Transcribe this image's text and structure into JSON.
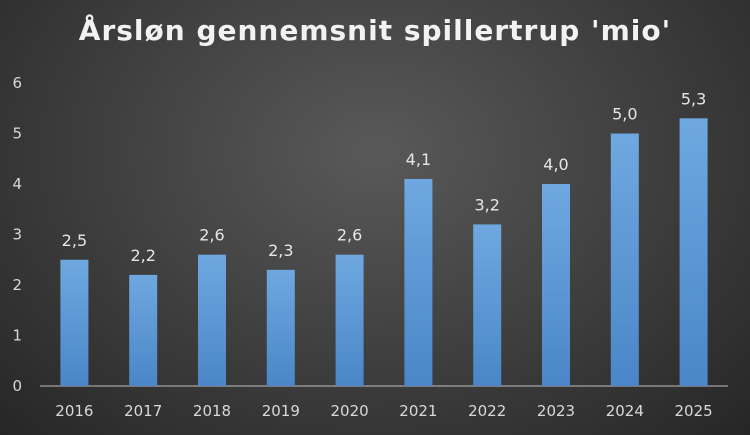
{
  "chart_data": {
    "type": "bar",
    "title": "Årsløn gennemsnit spillertrup 'mio'",
    "xlabel": "",
    "ylabel": "",
    "categories": [
      "2016",
      "2017",
      "2018",
      "2019",
      "2020",
      "2021",
      "2022",
      "2023",
      "2024",
      "2025"
    ],
    "values": [
      2.5,
      2.2,
      2.6,
      2.3,
      2.6,
      4.1,
      3.2,
      4.0,
      5.0,
      5.3
    ],
    "data_labels": [
      "2,5",
      "2,2",
      "2,6",
      "2,3",
      "2,6",
      "4,1",
      "3,2",
      "4,0",
      "5,0",
      "5,3"
    ],
    "ylim": [
      0,
      6
    ],
    "yticks": [
      "0",
      "1",
      "2",
      "3",
      "4",
      "5",
      "6"
    ],
    "grid": false,
    "legend": "none",
    "colors": {
      "bar_top": "#6fa8e0",
      "bar_bottom": "#4a86c8",
      "axis": "#bfbfbf",
      "text": "#d9d9d9",
      "title": "#f2f2f2"
    }
  }
}
